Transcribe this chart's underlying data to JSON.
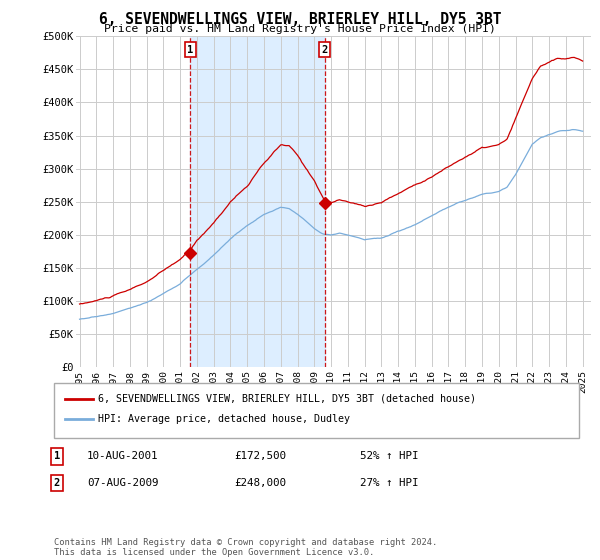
{
  "title": "6, SEVENDWELLINGS VIEW, BRIERLEY HILL, DY5 3BT",
  "subtitle": "Price paid vs. HM Land Registry's House Price Index (HPI)",
  "ylabel_ticks": [
    "£0",
    "£50K",
    "£100K",
    "£150K",
    "£200K",
    "£250K",
    "£300K",
    "£350K",
    "£400K",
    "£450K",
    "£500K"
  ],
  "ytick_vals": [
    0,
    50000,
    100000,
    150000,
    200000,
    250000,
    300000,
    350000,
    400000,
    450000,
    500000
  ],
  "ylim": [
    0,
    500000
  ],
  "xlim_start": 1994.8,
  "xlim_end": 2025.5,
  "xtick_years": [
    1995,
    1996,
    1997,
    1998,
    1999,
    2000,
    2001,
    2002,
    2003,
    2004,
    2005,
    2006,
    2007,
    2008,
    2009,
    2010,
    2011,
    2012,
    2013,
    2014,
    2015,
    2016,
    2017,
    2018,
    2019,
    2020,
    2021,
    2022,
    2023,
    2024,
    2025
  ],
  "red_line_color": "#cc0000",
  "blue_line_color": "#7aaddb",
  "shade_color": "#ddeeff",
  "purchase1_x": 2001.61,
  "purchase1_y": 172500,
  "purchase2_x": 2009.61,
  "purchase2_y": 248000,
  "vline1_x": 2001.61,
  "vline2_x": 2009.61,
  "legend_line1": "6, SEVENDWELLINGS VIEW, BRIERLEY HILL, DY5 3BT (detached house)",
  "legend_line2": "HPI: Average price, detached house, Dudley",
  "table_row1_num": "1",
  "table_row1_date": "10-AUG-2001",
  "table_row1_price": "£172,500",
  "table_row1_hpi": "52% ↑ HPI",
  "table_row2_num": "2",
  "table_row2_date": "07-AUG-2009",
  "table_row2_price": "£248,000",
  "table_row2_hpi": "27% ↑ HPI",
  "footer": "Contains HM Land Registry data © Crown copyright and database right 2024.\nThis data is licensed under the Open Government Licence v3.0.",
  "background_color": "#ffffff",
  "grid_color": "#cccccc"
}
